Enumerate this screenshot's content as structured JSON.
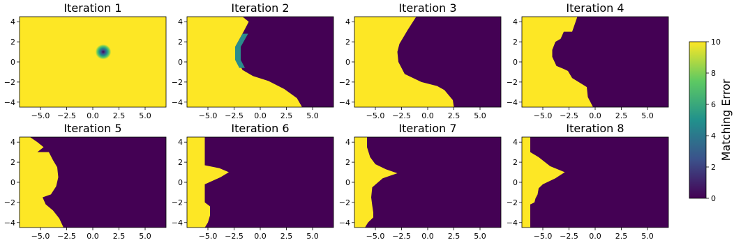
{
  "chart_data": {
    "type": "heatmap",
    "colormap": "viridis",
    "xlim": [
      -7,
      7
    ],
    "ylim": [
      -4.5,
      4.5
    ],
    "x_ticks": [
      -5.0,
      -2.5,
      0.0,
      2.5,
      5.0
    ],
    "x_tick_labels": [
      "−5.0",
      "−2.5",
      "0.0",
      "2.5",
      "5.0"
    ],
    "y_ticks": [
      4,
      2,
      0,
      -2,
      -4
    ],
    "y_tick_labels": [
      "4",
      "2",
      "0",
      "−2",
      "−4"
    ],
    "colorbar": {
      "label": "Matching Error",
      "range": [
        0,
        10
      ],
      "ticks": [
        10,
        8,
        6,
        4,
        2,
        0
      ],
      "tick_labels": [
        "10",
        "8",
        "6",
        "4",
        "2",
        "0"
      ]
    },
    "panels": [
      {
        "title": "Iteration 1",
        "kind": "blob",
        "center": [
          1.0,
          1.0
        ],
        "radius": 0.75
      },
      {
        "title": "Iteration 2",
        "kind": "boundary",
        "boundary": [
          [
            -1.7,
            4.5
          ],
          [
            -1.1,
            4.0
          ],
          [
            -1.6,
            3.0
          ],
          [
            -2.4,
            1.5
          ],
          [
            -2.4,
            0.5
          ],
          [
            -2.1,
            0.0
          ],
          [
            -1.7,
            -0.8
          ],
          [
            -0.7,
            -1.4
          ],
          [
            0.8,
            -1.9
          ],
          [
            2.3,
            -2.7
          ],
          [
            3.5,
            -3.6
          ],
          [
            4.0,
            -4.5
          ]
        ],
        "band": [
          [
            -1.7,
            2.8
          ],
          [
            -2.4,
            1.5
          ],
          [
            -2.4,
            0.2
          ],
          [
            -2.0,
            -0.6
          ]
        ]
      },
      {
        "title": "Iteration 3",
        "kind": "boundary",
        "boundary": [
          [
            -1.1,
            4.5
          ],
          [
            -1.9,
            3.2
          ],
          [
            -2.7,
            1.8
          ],
          [
            -2.9,
            1.0
          ],
          [
            -2.8,
            0.0
          ],
          [
            -2.2,
            -1.2
          ],
          [
            -0.6,
            -2.0
          ],
          [
            0.9,
            -2.4
          ],
          [
            1.6,
            -2.8
          ],
          [
            2.4,
            -3.8
          ],
          [
            2.5,
            -4.5
          ]
        ]
      },
      {
        "title": "Iteration 4",
        "kind": "boundary",
        "boundary": [
          [
            -1.7,
            4.5
          ],
          [
            -2.2,
            3.0
          ],
          [
            -3.0,
            3.0
          ],
          [
            -3.3,
            2.3
          ],
          [
            -3.8,
            2.0
          ],
          [
            -4.1,
            1.2
          ],
          [
            -4.1,
            0.5
          ],
          [
            -3.7,
            -0.4
          ],
          [
            -3.0,
            -0.7
          ],
          [
            -2.6,
            -0.9
          ],
          [
            -2.2,
            -1.6
          ],
          [
            -0.8,
            -2.5
          ],
          [
            -0.7,
            -3.5
          ],
          [
            -0.2,
            -4.5
          ]
        ]
      },
      {
        "title": "Iteration 5",
        "kind": "boundary",
        "boundary": [
          [
            -6.0,
            4.5
          ],
          [
            -5.3,
            4.0
          ],
          [
            -4.7,
            3.5
          ],
          [
            -5.3,
            3.0
          ],
          [
            -4.2,
            3.0
          ],
          [
            -3.8,
            2.2
          ],
          [
            -3.4,
            1.5
          ],
          [
            -3.3,
            0.5
          ],
          [
            -3.5,
            -0.4
          ],
          [
            -4.0,
            -1.2
          ],
          [
            -4.8,
            -1.5
          ],
          [
            -4.5,
            -2.2
          ],
          [
            -3.8,
            -2.8
          ],
          [
            -3.2,
            -3.6
          ],
          [
            -2.8,
            -4.5
          ]
        ]
      },
      {
        "title": "Iteration 6",
        "kind": "boundary",
        "boundary": [
          [
            -5.3,
            4.5
          ],
          [
            -5.3,
            1.7
          ],
          [
            -3.9,
            1.4
          ],
          [
            -3.0,
            1.0
          ],
          [
            -3.8,
            0.5
          ],
          [
            -5.3,
            -0.2
          ],
          [
            -5.3,
            -2.0
          ],
          [
            -4.8,
            -2.4
          ],
          [
            -4.8,
            -3.3
          ],
          [
            -5.0,
            -4.0
          ],
          [
            -5.3,
            -4.5
          ]
        ]
      },
      {
        "title": "Iteration 7",
        "kind": "boundary",
        "boundary": [
          [
            -5.8,
            4.5
          ],
          [
            -5.8,
            3.5
          ],
          [
            -5.5,
            2.5
          ],
          [
            -5.0,
            1.8
          ],
          [
            -4.0,
            1.3
          ],
          [
            -2.9,
            0.9
          ],
          [
            -4.3,
            0.4
          ],
          [
            -5.3,
            -0.5
          ],
          [
            -5.4,
            -1.5
          ],
          [
            -5.3,
            -2.3
          ],
          [
            -5.2,
            -3.0
          ],
          [
            -5.2,
            -3.5
          ],
          [
            -5.7,
            -4.0
          ],
          [
            -6.0,
            -4.5
          ]
        ]
      },
      {
        "title": "Iteration 8",
        "kind": "boundary",
        "boundary": [
          [
            -6.2,
            4.5
          ],
          [
            -6.2,
            3.0
          ],
          [
            -5.4,
            2.5
          ],
          [
            -4.3,
            1.6
          ],
          [
            -2.9,
            1.0
          ],
          [
            -3.8,
            0.4
          ],
          [
            -5.0,
            -0.2
          ],
          [
            -5.4,
            -0.6
          ],
          [
            -5.5,
            -1.2
          ],
          [
            -5.7,
            -1.6
          ],
          [
            -5.8,
            -2.0
          ],
          [
            -6.2,
            -2.2
          ],
          [
            -6.2,
            -4.5
          ]
        ]
      }
    ]
  }
}
